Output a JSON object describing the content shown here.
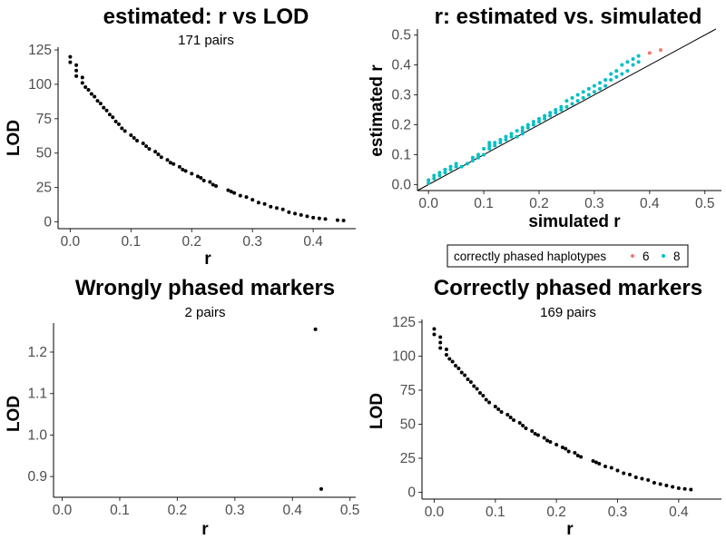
{
  "chart_data": [
    {
      "type": "scatter",
      "title": "estimated: r vs LOD",
      "subtitle": "171 pairs",
      "xlabel": "r",
      "ylabel": "LOD",
      "xlim": [
        -0.02,
        0.47
      ],
      "ylim": [
        -5,
        127
      ],
      "xticks": [
        0.0,
        0.1,
        0.2,
        0.3,
        0.4
      ],
      "xtick_labels": [
        "0.0",
        "0.1",
        "0.2",
        "0.3",
        "0.4"
      ],
      "yticks": [
        0,
        25,
        50,
        75,
        100,
        125
      ],
      "ytick_labels": [
        "0",
        "25",
        "50",
        "75",
        "100",
        "125"
      ],
      "grid": false,
      "series": [
        {
          "color": "#000000",
          "points": [
            [
              0.0,
              120
            ],
            [
              0.0,
              116
            ],
            [
              0.01,
              114
            ],
            [
              0.01,
              110
            ],
            [
              0.01,
              106
            ],
            [
              0.02,
              105
            ],
            [
              0.02,
              101
            ],
            [
              0.025,
              98
            ],
            [
              0.03,
              96
            ],
            [
              0.035,
              93
            ],
            [
              0.04,
              91
            ],
            [
              0.045,
              88
            ],
            [
              0.05,
              86
            ],
            [
              0.055,
              83
            ],
            [
              0.06,
              81
            ],
            [
              0.065,
              78
            ],
            [
              0.07,
              76
            ],
            [
              0.075,
              73
            ],
            [
              0.08,
              71
            ],
            [
              0.085,
              68
            ],
            [
              0.09,
              66
            ],
            [
              0.1,
              63
            ],
            [
              0.105,
              61
            ],
            [
              0.11,
              59
            ],
            [
              0.12,
              57
            ],
            [
              0.125,
              55
            ],
            [
              0.13,
              53
            ],
            [
              0.14,
              51
            ],
            [
              0.145,
              49
            ],
            [
              0.15,
              47
            ],
            [
              0.16,
              45
            ],
            [
              0.165,
              43
            ],
            [
              0.17,
              42
            ],
            [
              0.18,
              40
            ],
            [
              0.185,
              38
            ],
            [
              0.19,
              37
            ],
            [
              0.2,
              35
            ],
            [
              0.21,
              33
            ],
            [
              0.215,
              32
            ],
            [
              0.22,
              30
            ],
            [
              0.23,
              29
            ],
            [
              0.235,
              27
            ],
            [
              0.24,
              26
            ],
            [
              0.26,
              23
            ],
            [
              0.265,
              22
            ],
            [
              0.27,
              21
            ],
            [
              0.28,
              19
            ],
            [
              0.29,
              18
            ],
            [
              0.3,
              16
            ],
            [
              0.31,
              14
            ],
            [
              0.32,
              13
            ],
            [
              0.33,
              11
            ],
            [
              0.34,
              10
            ],
            [
              0.35,
              9
            ],
            [
              0.36,
              7
            ],
            [
              0.37,
              6
            ],
            [
              0.38,
              5
            ],
            [
              0.39,
              4
            ],
            [
              0.4,
              3
            ],
            [
              0.41,
              2.5
            ],
            [
              0.42,
              2
            ],
            [
              0.44,
              1.2
            ],
            [
              0.45,
              0.9
            ]
          ]
        }
      ]
    },
    {
      "type": "scatter",
      "title": "r: estimated vs. simulated",
      "subtitle": "",
      "xlabel": "simulated r",
      "ylabel": "estimated r",
      "xlim": [
        -0.02,
        0.53
      ],
      "ylim": [
        -0.02,
        0.52
      ],
      "xticks": [
        0.0,
        0.1,
        0.2,
        0.3,
        0.4,
        0.5
      ],
      "xtick_labels": [
        "0.0",
        "0.1",
        "0.2",
        "0.3",
        "0.4",
        "0.5"
      ],
      "yticks": [
        0.0,
        0.1,
        0.2,
        0.3,
        0.4,
        0.5
      ],
      "ytick_labels": [
        "0.0",
        "0.1",
        "0.2",
        "0.3",
        "0.4",
        "0.5"
      ],
      "grid": false,
      "reference_line": "y = x",
      "legend": {
        "title": "correctly phased haplotypes",
        "placement": "bottom",
        "entries": [
          {
            "label": "6",
            "color": "#F8766D"
          },
          {
            "label": "8",
            "color": "#00BFC4"
          }
        ]
      },
      "series": [
        {
          "name": "6",
          "color": "#F8766D",
          "points": [
            [
              0.4,
              0.44
            ],
            [
              0.42,
              0.45
            ]
          ]
        },
        {
          "name": "8",
          "color": "#00BFC4",
          "points": [
            [
              0.0,
              0.005
            ],
            [
              0.0,
              0.015
            ],
            [
              0.01,
              0.02
            ],
            [
              0.01,
              0.03
            ],
            [
              0.02,
              0.03
            ],
            [
              0.02,
              0.04
            ],
            [
              0.03,
              0.04
            ],
            [
              0.03,
              0.05
            ],
            [
              0.04,
              0.05
            ],
            [
              0.04,
              0.06
            ],
            [
              0.05,
              0.06
            ],
            [
              0.05,
              0.07
            ],
            [
              0.06,
              0.06
            ],
            [
              0.07,
              0.07
            ],
            [
              0.08,
              0.08
            ],
            [
              0.08,
              0.09
            ],
            [
              0.09,
              0.09
            ],
            [
              0.09,
              0.1
            ],
            [
              0.1,
              0.1
            ],
            [
              0.1,
              0.12
            ],
            [
              0.11,
              0.12
            ],
            [
              0.11,
              0.13
            ],
            [
              0.11,
              0.14
            ],
            [
              0.12,
              0.13
            ],
            [
              0.12,
              0.14
            ],
            [
              0.13,
              0.14
            ],
            [
              0.13,
              0.15
            ],
            [
              0.14,
              0.15
            ],
            [
              0.14,
              0.16
            ],
            [
              0.15,
              0.16
            ],
            [
              0.15,
              0.17
            ],
            [
              0.16,
              0.16
            ],
            [
              0.16,
              0.18
            ],
            [
              0.17,
              0.17
            ],
            [
              0.17,
              0.18
            ],
            [
              0.17,
              0.19
            ],
            [
              0.18,
              0.19
            ],
            [
              0.18,
              0.2
            ],
            [
              0.19,
              0.2
            ],
            [
              0.19,
              0.21
            ],
            [
              0.2,
              0.21
            ],
            [
              0.2,
              0.22
            ],
            [
              0.21,
              0.22
            ],
            [
              0.21,
              0.23
            ],
            [
              0.22,
              0.23
            ],
            [
              0.22,
              0.24
            ],
            [
              0.23,
              0.24
            ],
            [
              0.23,
              0.25
            ],
            [
              0.24,
              0.25
            ],
            [
              0.24,
              0.26
            ],
            [
              0.25,
              0.26
            ],
            [
              0.25,
              0.28
            ],
            [
              0.26,
              0.27
            ],
            [
              0.26,
              0.29
            ],
            [
              0.27,
              0.28
            ],
            [
              0.27,
              0.3
            ],
            [
              0.28,
              0.29
            ],
            [
              0.28,
              0.31
            ],
            [
              0.29,
              0.3
            ],
            [
              0.29,
              0.32
            ],
            [
              0.3,
              0.31
            ],
            [
              0.3,
              0.33
            ],
            [
              0.31,
              0.32
            ],
            [
              0.31,
              0.34
            ],
            [
              0.32,
              0.33
            ],
            [
              0.32,
              0.35
            ],
            [
              0.33,
              0.35
            ],
            [
              0.33,
              0.37
            ],
            [
              0.34,
              0.36
            ],
            [
              0.34,
              0.38
            ],
            [
              0.35,
              0.37
            ],
            [
              0.35,
              0.4
            ],
            [
              0.36,
              0.38
            ],
            [
              0.36,
              0.41
            ],
            [
              0.37,
              0.4
            ],
            [
              0.37,
              0.42
            ],
            [
              0.38,
              0.41
            ],
            [
              0.38,
              0.43
            ]
          ]
        }
      ]
    },
    {
      "type": "scatter",
      "title": "Wrongly phased markers",
      "subtitle": "2 pairs",
      "xlabel": "r",
      "ylabel": "LOD",
      "xlim": [
        -0.015,
        0.51
      ],
      "ylim": [
        0.85,
        1.27
      ],
      "xticks": [
        0.0,
        0.1,
        0.2,
        0.3,
        0.4,
        0.5
      ],
      "xtick_labels": [
        "0.0",
        "0.1",
        "0.2",
        "0.3",
        "0.4",
        "0.5"
      ],
      "yticks": [
        0.9,
        1.0,
        1.1,
        1.2
      ],
      "ytick_labels": [
        "0.9",
        "1.0",
        "1.1",
        "1.2"
      ],
      "grid": false,
      "series": [
        {
          "color": "#000000",
          "points": [
            [
              0.44,
              1.255
            ],
            [
              0.45,
              0.87
            ]
          ]
        }
      ]
    },
    {
      "type": "scatter",
      "title": "Correctly phased markers",
      "subtitle": "169 pairs",
      "xlabel": "r",
      "ylabel": "LOD",
      "xlim": [
        -0.02,
        0.47
      ],
      "ylim": [
        -5,
        127
      ],
      "xticks": [
        0.0,
        0.1,
        0.2,
        0.3,
        0.4
      ],
      "xtick_labels": [
        "0.0",
        "0.1",
        "0.2",
        "0.3",
        "0.4"
      ],
      "yticks": [
        0,
        25,
        50,
        75,
        100,
        125
      ],
      "ytick_labels": [
        "0",
        "25",
        "50",
        "75",
        "100",
        "125"
      ],
      "grid": false,
      "series": [
        {
          "color": "#000000",
          "points": [
            [
              0.0,
              120
            ],
            [
              0.0,
              116
            ],
            [
              0.01,
              114
            ],
            [
              0.01,
              110
            ],
            [
              0.01,
              106
            ],
            [
              0.02,
              105
            ],
            [
              0.02,
              101
            ],
            [
              0.025,
              98
            ],
            [
              0.03,
              96
            ],
            [
              0.035,
              93
            ],
            [
              0.04,
              91
            ],
            [
              0.045,
              88
            ],
            [
              0.05,
              86
            ],
            [
              0.055,
              83
            ],
            [
              0.06,
              81
            ],
            [
              0.065,
              78
            ],
            [
              0.07,
              76
            ],
            [
              0.075,
              73
            ],
            [
              0.08,
              71
            ],
            [
              0.085,
              68
            ],
            [
              0.09,
              66
            ],
            [
              0.1,
              63
            ],
            [
              0.105,
              61
            ],
            [
              0.11,
              59
            ],
            [
              0.12,
              57
            ],
            [
              0.125,
              55
            ],
            [
              0.13,
              53
            ],
            [
              0.14,
              51
            ],
            [
              0.145,
              49
            ],
            [
              0.15,
              47
            ],
            [
              0.16,
              45
            ],
            [
              0.165,
              43
            ],
            [
              0.17,
              42
            ],
            [
              0.18,
              40
            ],
            [
              0.185,
              38
            ],
            [
              0.19,
              37
            ],
            [
              0.2,
              35
            ],
            [
              0.21,
              33
            ],
            [
              0.215,
              32
            ],
            [
              0.22,
              30
            ],
            [
              0.23,
              29
            ],
            [
              0.235,
              27
            ],
            [
              0.24,
              26
            ],
            [
              0.26,
              23
            ],
            [
              0.265,
              22
            ],
            [
              0.27,
              21
            ],
            [
              0.28,
              19
            ],
            [
              0.29,
              18
            ],
            [
              0.3,
              16
            ],
            [
              0.31,
              14
            ],
            [
              0.32,
              13
            ],
            [
              0.33,
              11
            ],
            [
              0.34,
              10
            ],
            [
              0.35,
              9
            ],
            [
              0.36,
              7
            ],
            [
              0.37,
              6
            ],
            [
              0.38,
              5
            ],
            [
              0.39,
              4
            ],
            [
              0.4,
              3
            ],
            [
              0.41,
              2.5
            ],
            [
              0.42,
              2
            ]
          ]
        }
      ]
    }
  ]
}
